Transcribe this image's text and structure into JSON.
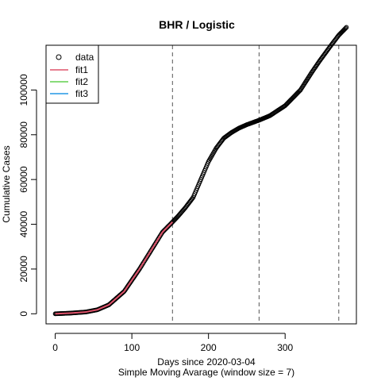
{
  "chart_data": {
    "type": "scatter",
    "title": "BHR / Logistic",
    "xlabel": "Days since 2020-03-04",
    "xlabel2": "Simple Moving Avarage (window size = 7)",
    "ylabel": "Cumulative Cases",
    "xlim": [
      -12,
      393
    ],
    "ylim": [
      -4500,
      120000
    ],
    "xticks": [
      0,
      100,
      200,
      300
    ],
    "xtick_labels": [
      "0",
      "100",
      "200",
      "300"
    ],
    "yticks": [
      0,
      20000,
      40000,
      60000,
      80000,
      100000
    ],
    "ytick_labels": [
      "0",
      "20000",
      "40000",
      "60000",
      "80000",
      "100000"
    ],
    "vlines": [
      153,
      266,
      370
    ],
    "legend": {
      "position": "top-left",
      "entries": [
        {
          "label": "data",
          "color": "#000000",
          "kind": "point"
        },
        {
          "label": "fit1",
          "color": "#DF536B",
          "kind": "line"
        },
        {
          "label": "fit2",
          "color": "#61D04F",
          "kind": "line"
        },
        {
          "label": "fit3",
          "color": "#2297E6",
          "kind": "line"
        }
      ]
    },
    "data_anchor_x": [
      0,
      20,
      40,
      55,
      70,
      90,
      110,
      130,
      140,
      153,
      160,
      170,
      180,
      190,
      200,
      210,
      220,
      230,
      240,
      250,
      266,
      280,
      300,
      320,
      335,
      345,
      360,
      370,
      380
    ],
    "data_anchor_y": [
      0,
      300,
      800,
      1800,
      4000,
      10000,
      20000,
      31000,
      36500,
      41000,
      43500,
      47500,
      52000,
      60000,
      68000,
      74000,
      78500,
      81000,
      83000,
      84500,
      86500,
      88500,
      93000,
      100000,
      108000,
      113000,
      120000,
      124500,
      128000
    ],
    "fit1_x": [
      0,
      20,
      40,
      55,
      70,
      90,
      110,
      130,
      140,
      153
    ],
    "fit1_y": [
      0,
      300,
      800,
      1800,
      4000,
      10000,
      20000,
      31000,
      36500,
      41000
    ]
  }
}
